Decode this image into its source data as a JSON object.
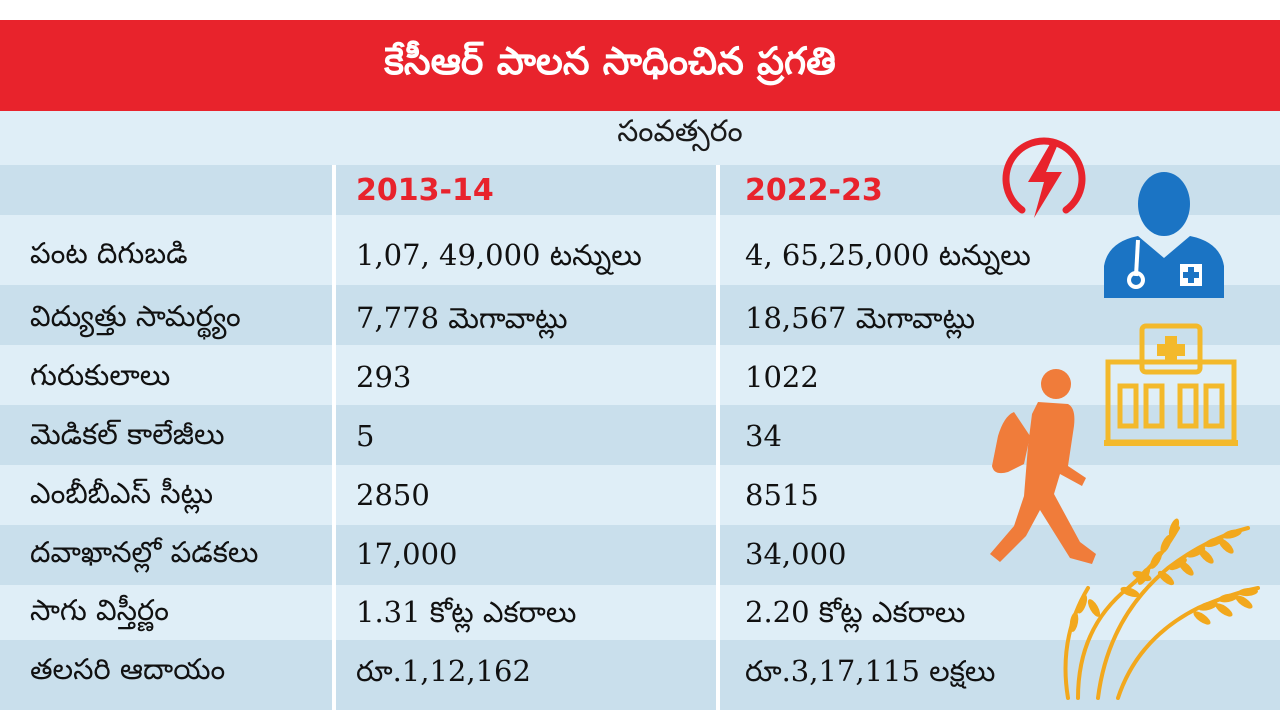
{
  "title": "కేసీఆర్ పాలన సాధించిన ప్రగతి",
  "year_header": "సంవత్సరం",
  "columns": [
    "2013-14",
    "2022-23"
  ],
  "rows": [
    {
      "label": "పంట దిగుబడి",
      "v2013": "1,07, 49,000 టన్నులు",
      "v2022": "4, 65,25,000 టన్నులు"
    },
    {
      "label": "విద్యుత్తు సామర్థ్యం",
      "v2013": "7,778 మెగావాట్లు",
      "v2022": "18,567 మెగావాట్లు"
    },
    {
      "label": "గురుకులాలు",
      "v2013": "293",
      "v2022": "1022"
    },
    {
      "label": "మెడికల్ కాలేజీలు",
      "v2013": "5",
      "v2022": "34"
    },
    {
      "label": "ఎంబీబీఎస్ సీట్లు",
      "v2013": "2850",
      "v2022": "8515"
    },
    {
      "label": "దవాఖానల్లో పడకలు",
      "v2013": "17,000",
      "v2022": "34,000"
    },
    {
      "label": "సాగు విస్తీర్ణం",
      "v2013": "1.31 కోట్ల ఎకరాలు",
      "v2022": "2.20 కోట్ల ఎకరాలు"
    },
    {
      "label": "తలసరి ఆదాయం",
      "v2013": "రూ.1,12,162",
      "v2022": "రూ.3,17,115 లక్షలు"
    }
  ],
  "icons": [
    "power-icon",
    "doctor-icon",
    "hospital-icon",
    "student-icon",
    "paddy-icon"
  ],
  "colors": {
    "banner": "#e8232c",
    "accent": "#e8232c",
    "power": "#e8232c",
    "doctor": "#1b74c4",
    "hospital": "#f3b92b",
    "student": "#f07c3a",
    "paddy": "#f2a81d"
  }
}
